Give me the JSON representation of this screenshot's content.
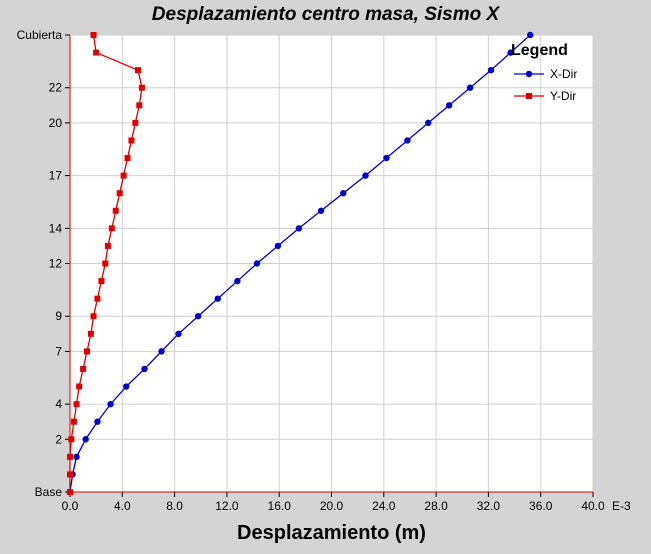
{
  "chart_data": {
    "type": "line",
    "title": "Desplazamiento centro masa, Sismo X",
    "xlabel": "Desplazamiento (m)",
    "xscale_label": "E-3",
    "xlim": [
      0,
      40
    ],
    "xticks": [
      "0.0",
      "4.0",
      "8.0",
      "12.0",
      "16.0",
      "20.0",
      "24.0",
      "28.0",
      "32.0",
      "36.0",
      "40.0"
    ],
    "ylim": [
      0,
      26
    ],
    "yticks": [
      {
        "label": "Base",
        "level": 0
      },
      {
        "label": "2",
        "level": 3
      },
      {
        "label": "4",
        "level": 5
      },
      {
        "label": "7",
        "level": 8
      },
      {
        "label": "9",
        "level": 10
      },
      {
        "label": "12",
        "level": 13
      },
      {
        "label": "14",
        "level": 15
      },
      {
        "label": "17",
        "level": 18
      },
      {
        "label": "20",
        "level": 21
      },
      {
        "label": "22",
        "level": 23
      },
      {
        "label": "Cubierta",
        "level": 26
      }
    ],
    "grid": true,
    "legend": {
      "title": "Legend",
      "position": "top-right"
    },
    "series": [
      {
        "name": "X-Dir",
        "color": "#0000cc",
        "marker": "circle",
        "points": [
          {
            "y": 0,
            "x": 0.0
          },
          {
            "y": 1,
            "x": 0.2
          },
          {
            "y": 2,
            "x": 0.5
          },
          {
            "y": 3,
            "x": 1.2
          },
          {
            "y": 4,
            "x": 2.1
          },
          {
            "y": 5,
            "x": 3.1
          },
          {
            "y": 6,
            "x": 4.3
          },
          {
            "y": 7,
            "x": 5.7
          },
          {
            "y": 8,
            "x": 7.0
          },
          {
            "y": 9,
            "x": 8.3
          },
          {
            "y": 10,
            "x": 9.8
          },
          {
            "y": 11,
            "x": 11.3
          },
          {
            "y": 12,
            "x": 12.8
          },
          {
            "y": 13,
            "x": 14.3
          },
          {
            "y": 14,
            "x": 15.9
          },
          {
            "y": 15,
            "x": 17.5
          },
          {
            "y": 16,
            "x": 19.2
          },
          {
            "y": 17,
            "x": 20.9
          },
          {
            "y": 18,
            "x": 22.6
          },
          {
            "y": 19,
            "x": 24.2
          },
          {
            "y": 20,
            "x": 25.8
          },
          {
            "y": 21,
            "x": 27.4
          },
          {
            "y": 22,
            "x": 29.0
          },
          {
            "y": 23,
            "x": 30.6
          },
          {
            "y": 24,
            "x": 32.2
          },
          {
            "y": 25,
            "x": 33.7
          },
          {
            "y": 26,
            "x": 35.2
          }
        ]
      },
      {
        "name": "Y-Dir",
        "color": "#e00000",
        "marker": "square",
        "points": [
          {
            "y": 0,
            "x": 0.0
          },
          {
            "y": 1,
            "x": 0.0
          },
          {
            "y": 2,
            "x": 0.0
          },
          {
            "y": 3,
            "x": 0.1
          },
          {
            "y": 4,
            "x": 0.3
          },
          {
            "y": 5,
            "x": 0.5
          },
          {
            "y": 6,
            "x": 0.7
          },
          {
            "y": 7,
            "x": 1.0
          },
          {
            "y": 8,
            "x": 1.3
          },
          {
            "y": 9,
            "x": 1.6
          },
          {
            "y": 10,
            "x": 1.8
          },
          {
            "y": 11,
            "x": 2.1
          },
          {
            "y": 12,
            "x": 2.4
          },
          {
            "y": 13,
            "x": 2.7
          },
          {
            "y": 14,
            "x": 2.9
          },
          {
            "y": 15,
            "x": 3.2
          },
          {
            "y": 16,
            "x": 3.5
          },
          {
            "y": 17,
            "x": 3.8
          },
          {
            "y": 18,
            "x": 4.1
          },
          {
            "y": 19,
            "x": 4.4
          },
          {
            "y": 20,
            "x": 4.7
          },
          {
            "y": 21,
            "x": 5.0
          },
          {
            "y": 22,
            "x": 5.3
          },
          {
            "y": 23,
            "x": 5.5
          },
          {
            "y": 24,
            "x": 5.2
          },
          {
            "y": 25,
            "x": 2.0
          },
          {
            "y": 26,
            "x": 1.8
          }
        ]
      }
    ]
  }
}
